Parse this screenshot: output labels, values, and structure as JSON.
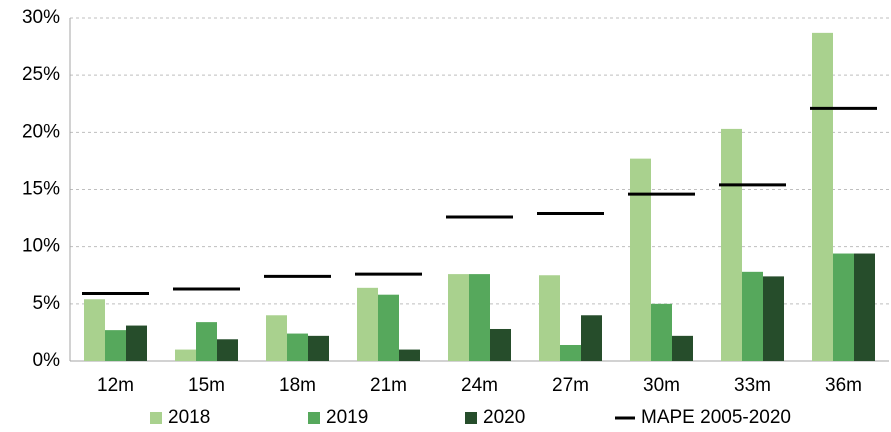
{
  "chart_data": {
    "type": "bar",
    "categories": [
      "12m",
      "15m",
      "18m",
      "21m",
      "24m",
      "27m",
      "30m",
      "33m",
      "36m"
    ],
    "series": [
      {
        "name": "2018",
        "color": "#a9d18e",
        "values": [
          5.4,
          1.0,
          4.0,
          6.4,
          7.6,
          7.5,
          17.7,
          20.3,
          28.7
        ]
      },
      {
        "name": "2019",
        "color": "#56a85c",
        "values": [
          2.7,
          3.4,
          2.4,
          5.8,
          7.6,
          1.4,
          5.0,
          7.8,
          9.4
        ]
      },
      {
        "name": "2020",
        "color": "#264d2b",
        "values": [
          3.1,
          1.9,
          2.2,
          1.0,
          2.8,
          4.0,
          2.2,
          7.4,
          9.4
        ]
      },
      {
        "name": "MAPE 2005-2020",
        "color": "#000000",
        "mark": "dash",
        "values": [
          5.9,
          6.3,
          7.4,
          7.6,
          12.6,
          12.9,
          14.6,
          15.4,
          22.1
        ]
      }
    ],
    "ylim": [
      0,
      30
    ],
    "yticks": [
      {
        "value": 0,
        "label": "0%"
      },
      {
        "value": 5,
        "label": "5%"
      },
      {
        "value": 10,
        "label": "10%"
      },
      {
        "value": 15,
        "label": "15%"
      },
      {
        "value": 20,
        "label": "20%"
      },
      {
        "value": 25,
        "label": "25%"
      },
      {
        "value": 30,
        "label": "30%"
      }
    ],
    "grid": true,
    "legend": "bottom"
  }
}
